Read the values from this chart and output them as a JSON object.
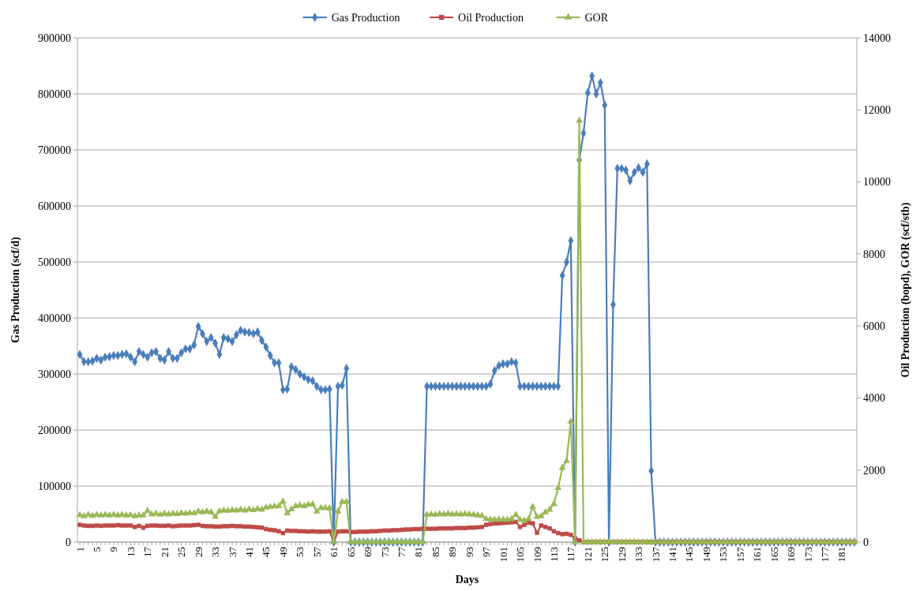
{
  "chart_data": {
    "type": "line",
    "xlabel": "Days",
    "ylabel": "Gas Production (scf/d)",
    "y2label": "Oil Production (bopd), GOR (scf/stb)",
    "legend": "top",
    "grid": "y",
    "categories": [
      "1",
      null,
      null,
      null,
      "5",
      null,
      null,
      null,
      "9",
      null,
      null,
      null,
      "13",
      null,
      null,
      null,
      "17",
      null,
      null,
      null,
      "21",
      null,
      null,
      null,
      "25",
      null,
      null,
      null,
      "29",
      null,
      null,
      null,
      "33",
      null,
      null,
      null,
      "37",
      null,
      null,
      null,
      "41",
      null,
      null,
      null,
      "45",
      null,
      null,
      null,
      "49",
      null,
      null,
      null,
      "53",
      null,
      null,
      null,
      "57",
      null,
      null,
      null,
      "61",
      null,
      null,
      null,
      "65",
      null,
      null,
      null,
      "69",
      null,
      null,
      null,
      "73",
      null,
      null,
      null,
      "77",
      null,
      null,
      null,
      "81",
      null,
      null,
      null,
      "85",
      null,
      null,
      null,
      "89",
      null,
      null,
      null,
      "93",
      null,
      null,
      null,
      "97",
      null,
      null,
      null,
      "101",
      null,
      null,
      null,
      "105",
      null,
      null,
      null,
      "109",
      null,
      null,
      null,
      "113",
      null,
      null,
      null,
      "117",
      null,
      null,
      null,
      "121",
      null,
      null,
      null,
      "125",
      null,
      null,
      null,
      "129",
      null,
      null,
      null,
      "133",
      null,
      null,
      null,
      "137",
      null,
      null,
      null,
      "141",
      null,
      null,
      null,
      "145",
      null,
      null,
      null,
      "149",
      null,
      null,
      null,
      "153",
      null,
      null,
      null,
      "157",
      null,
      null,
      null,
      "161",
      null,
      null,
      null,
      "165",
      null,
      null,
      null,
      "169",
      null,
      null,
      null,
      "173",
      null,
      null,
      null,
      "177",
      null,
      null,
      null,
      "181",
      null,
      null,
      null
    ],
    "ylim": [
      0,
      900000
    ],
    "yticks": [
      0,
      100000,
      200000,
      300000,
      400000,
      500000,
      600000,
      700000,
      800000,
      900000
    ],
    "y2lim": [
      0,
      14000
    ],
    "y2ticks": [
      0,
      2000,
      4000,
      6000,
      8000,
      10000,
      12000,
      14000
    ],
    "series": [
      {
        "name": "Gas Production",
        "color": "#4a7ebb",
        "marker": "diamond",
        "values": [
          335000,
          322000,
          322000,
          323000,
          328000,
          325000,
          330000,
          331000,
          333000,
          333000,
          335000,
          336000,
          330000,
          322000,
          340000,
          335000,
          330000,
          338000,
          340000,
          328000,
          325000,
          340000,
          328000,
          328000,
          338000,
          345000,
          345000,
          352000,
          385000,
          372000,
          358000,
          365000,
          355000,
          335000,
          365000,
          363000,
          358000,
          370000,
          378000,
          375000,
          374000,
          372000,
          375000,
          360000,
          348000,
          333000,
          320000,
          320000,
          272000,
          273000,
          313000,
          308000,
          300000,
          295000,
          290000,
          288000,
          278000,
          272000,
          272000,
          273000,
          0,
          278000,
          280000,
          310000,
          0,
          0,
          0,
          0,
          0,
          0,
          0,
          0,
          0,
          0,
          0,
          0,
          0,
          0,
          0,
          0,
          0,
          0,
          278000,
          278000,
          278000,
          278000,
          278000,
          278000,
          278000,
          278000,
          278000,
          278000,
          278000,
          278000,
          278000,
          278000,
          278000,
          282000,
          306000,
          315000,
          318000,
          318000,
          322000,
          320000,
          278000,
          278000,
          278000,
          278000,
          278000,
          278000,
          278000,
          278000,
          278000,
          278000,
          476000,
          500000,
          538000,
          0,
          682000,
          730000,
          802000,
          832000,
          800000,
          820000,
          780000,
          0,
          424000,
          667000,
          667000,
          664000,
          645000,
          660000,
          668000,
          660000,
          675000,
          127000,
          0,
          0,
          0,
          0,
          0,
          0,
          0,
          0,
          0,
          0,
          0,
          0,
          0,
          0,
          0,
          0,
          0,
          0,
          0,
          0,
          0,
          0,
          0,
          0,
          0,
          0,
          0,
          0,
          0,
          0,
          0,
          0,
          0,
          0,
          0,
          0,
          0,
          0,
          0,
          0,
          0,
          0,
          0,
          0,
          0,
          0,
          0,
          0
        ]
      },
      {
        "name": "Oil Production",
        "color": "#be4b48",
        "marker": "square",
        "axis": "y2",
        "values": [
          480,
          460,
          450,
          450,
          460,
          450,
          460,
          460,
          460,
          470,
          460,
          460,
          460,
          420,
          450,
          400,
          450,
          460,
          460,
          450,
          450,
          460,
          440,
          450,
          460,
          460,
          460,
          470,
          480,
          450,
          440,
          440,
          430,
          430,
          440,
          440,
          450,
          440,
          440,
          430,
          430,
          420,
          410,
          400,
          360,
          340,
          330,
          300,
          250,
          320,
          310,
          310,
          300,
          300,
          290,
          300,
          290,
          290,
          290,
          300,
          0,
          290,
          300,
          300,
          280,
          280,
          290,
          290,
          290,
          300,
          300,
          310,
          320,
          320,
          330,
          330,
          340,
          350,
          350,
          360,
          360,
          370,
          370,
          370,
          370,
          380,
          380,
          380,
          380,
          390,
          390,
          390,
          400,
          400,
          410,
          420,
          480,
          500,
          520,
          520,
          530,
          540,
          550,
          560,
          420,
          480,
          540,
          520,
          260,
          460,
          420,
          380,
          300,
          250,
          220,
          230,
          200,
          100,
          50,
          0,
          0,
          0,
          0,
          0,
          0,
          0,
          0,
          0,
          0,
          0,
          0,
          0,
          0,
          0,
          0,
          0,
          0,
          0,
          0,
          0,
          0,
          0,
          0,
          0,
          0,
          0,
          0,
          0,
          0,
          0,
          0,
          0,
          0,
          0,
          0,
          0,
          0,
          0,
          0,
          0,
          0,
          0,
          0,
          0,
          0,
          0,
          0,
          0,
          0,
          0,
          0,
          0,
          0,
          0,
          0,
          0,
          0,
          0,
          0,
          0,
          0,
          0,
          0,
          0
        ]
      },
      {
        "name": "GOR",
        "color": "#98b954",
        "marker": "triangle",
        "axis": "y2",
        "values": [
          750,
          720,
          760,
          730,
          760,
          740,
          760,
          740,
          760,
          740,
          760,
          740,
          750,
          720,
          740,
          740,
          870,
          770,
          790,
          760,
          790,
          770,
          790,
          780,
          800,
          790,
          810,
          800,
          850,
          830,
          850,
          830,
          700,
          860,
          880,
          870,
          890,
          880,
          900,
          880,
          910,
          890,
          920,
          900,
          960,
          980,
          990,
          1000,
          1130,
          800,
          910,
          1000,
          1020,
          1000,
          1040,
          1050,
          850,
          950,
          950,
          940,
          0,
          850,
          1120,
          1120,
          0,
          0,
          0,
          0,
          0,
          0,
          0,
          0,
          0,
          0,
          0,
          0,
          0,
          0,
          0,
          0,
          0,
          0,
          760,
          770,
          760,
          780,
          770,
          790,
          770,
          780,
          770,
          780,
          770,
          760,
          740,
          730,
          640,
          630,
          620,
          630,
          630,
          620,
          640,
          760,
          620,
          600,
          640,
          980,
          700,
          720,
          830,
          900,
          1060,
          1500,
          2060,
          2250,
          3350,
          0,
          11700,
          0,
          0,
          0,
          0,
          0,
          0,
          0,
          0,
          0,
          0,
          0,
          0,
          0,
          0,
          0,
          0,
          0,
          0,
          0,
          0,
          0,
          0,
          0,
          0,
          0,
          0,
          0,
          0,
          0,
          0,
          0,
          0,
          0,
          0,
          0,
          0,
          0,
          0,
          0,
          0,
          0,
          0,
          0,
          0,
          0,
          0,
          0,
          0,
          0,
          0,
          0,
          0,
          0,
          0,
          0,
          0,
          0,
          0,
          0,
          0,
          0,
          0,
          0,
          0,
          0
        ]
      }
    ]
  }
}
